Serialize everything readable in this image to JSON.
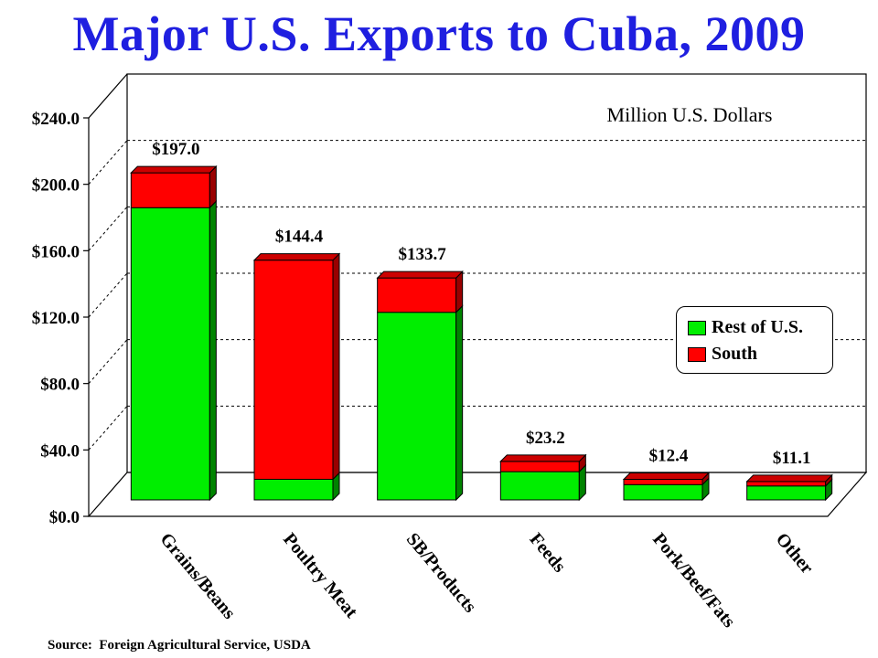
{
  "title": "Major U.S. Exports to Cuba, 2009",
  "source": "Source:  Foreign Agricultural Service, USDA",
  "unit_label": "Million U.S. Dollars",
  "colors": {
    "rest": "#00ee00",
    "south": "#ff0000",
    "title": "#1f1fe0"
  },
  "chart_data": {
    "type": "bar",
    "stacked": true,
    "categories": [
      "Grains/Beans",
      "Poultry Meat",
      "SB/Products",
      "Feeds",
      "Pork/Beef/Fats",
      "Other"
    ],
    "series": [
      {
        "name": "Rest of U.S.",
        "values": [
          176.0,
          12.4,
          113.0,
          17.0,
          9.2,
          8.4
        ]
      },
      {
        "name": "South",
        "values": [
          21.0,
          132.0,
          20.7,
          6.2,
          3.2,
          2.7
        ]
      }
    ],
    "totals": [
      197.0,
      144.4,
      133.7,
      23.2,
      12.4,
      11.1
    ],
    "total_labels": [
      "$197.0",
      "$144.4",
      "$133.7",
      "$23.2",
      "$12.4",
      "$11.1"
    ],
    "ylim": [
      0,
      240
    ],
    "yticks": [
      0,
      40,
      80,
      120,
      160,
      200,
      240
    ],
    "ytick_labels": [
      "$0.0",
      "$40.0",
      "$80.0",
      "$120.0",
      "$160.0",
      "$200.0",
      "$240.0"
    ],
    "grid": true,
    "legend_position": "right"
  }
}
